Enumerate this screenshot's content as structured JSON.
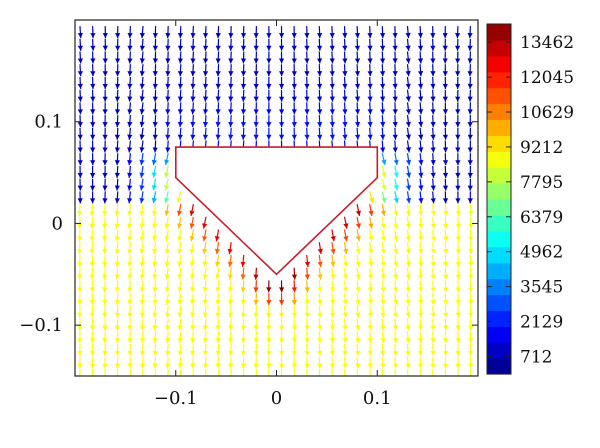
{
  "chart_data": {
    "type": "quiver",
    "title": "",
    "xlabel": "",
    "ylabel": "",
    "xlim": [
      -0.2,
      0.2
    ],
    "ylim": [
      -0.15,
      0.2
    ],
    "x_ticks": [
      {
        "value": -0.1,
        "label": "−0.1"
      },
      {
        "value": 0,
        "label": "0"
      },
      {
        "value": 0.1,
        "label": "0.1"
      }
    ],
    "y_ticks": [
      {
        "value": 0.1,
        "label": "0.1"
      },
      {
        "value": 0,
        "label": "0"
      },
      {
        "value": -0.1,
        "label": "−0.1"
      }
    ],
    "grid": false,
    "obstacle": {
      "shape": "pentagon",
      "vertices": [
        [
          -0.1,
          0.075
        ],
        [
          0.1,
          0.075
        ],
        [
          0.1,
          0.045
        ],
        [
          0,
          -0.05
        ],
        [
          -0.1,
          0.045
        ]
      ],
      "edge_color": "#cc1a2a"
    },
    "colorbar": {
      "colormap": "jet",
      "min": 0,
      "max": 14200,
      "tick_values": [
        13462,
        12045,
        10629,
        9212,
        7795,
        6379,
        4962,
        3545,
        2129,
        712
      ],
      "tick_labels": [
        "13462",
        "12045",
        "10629",
        "9212",
        "7795",
        "6379",
        "4962",
        "3545",
        "2129",
        "712"
      ]
    },
    "field_description_colors": {
      "far_field_above": "#1c3fd6",
      "below_obstacle": "#a3e632",
      "peak_near_tip": "#d42a1a"
    }
  }
}
